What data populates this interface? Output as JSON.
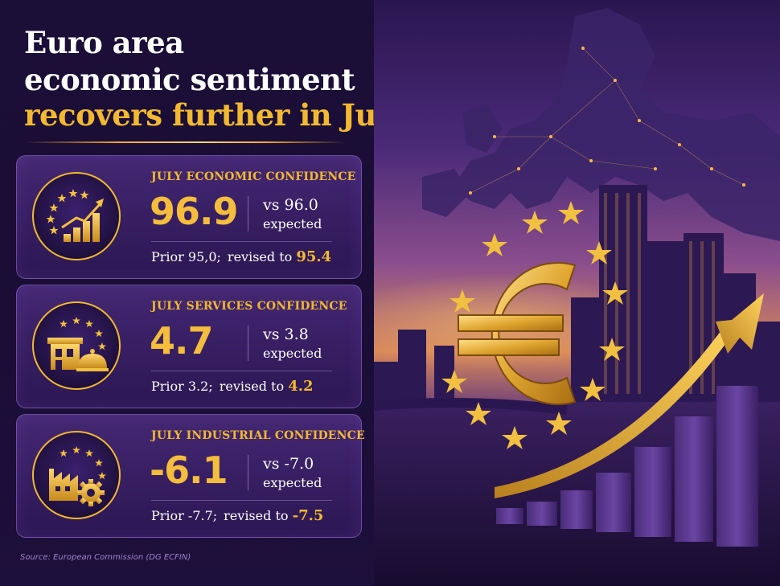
{
  "headline": {
    "line1": "Euro area",
    "line2": "economic sentiment",
    "line3": "recovers further in July"
  },
  "cards": [
    {
      "icon": "growth-chart-icon",
      "title": "JULY ECONOMIC CONFIDENCE",
      "value": "96.9",
      "vs": "vs 96.0",
      "expected_label": "expected",
      "prior_label": "Prior",
      "prior_value": "95,0;",
      "revised_label": "revised to",
      "revised_value": "95.4"
    },
    {
      "icon": "services-shop-icon",
      "title": "JULY SERVICES CONFIDENCE",
      "value": "4.7",
      "vs": "vs 3.8",
      "expected_label": "expected",
      "prior_label": "Prior",
      "prior_value": "3.2;",
      "revised_label": "revised to",
      "revised_value": "4.2"
    },
    {
      "icon": "factory-gear-icon",
      "title": "JULY INDUSTRIAL CONFIDENCE",
      "value": "-6.1",
      "vs": "vs -7.0",
      "expected_label": "expected",
      "prior_label": "Prior",
      "prior_value": "-7.7;",
      "revised_label": "revised to",
      "revised_value": "-7.5"
    }
  ],
  "source": "Source: European Commission (DG ECFIN)",
  "colors": {
    "accent_gold": "#f2b930",
    "background_purple": "#1b0e37",
    "card_purple": "#3a1f6a",
    "text_white": "#ffffff"
  },
  "illustration": {
    "icons": [
      "europe-map-icon",
      "euro-symbol-icon",
      "eu-stars-icon",
      "city-skyline-icon",
      "rising-arrow-icon",
      "bar-chart-icon"
    ]
  }
}
